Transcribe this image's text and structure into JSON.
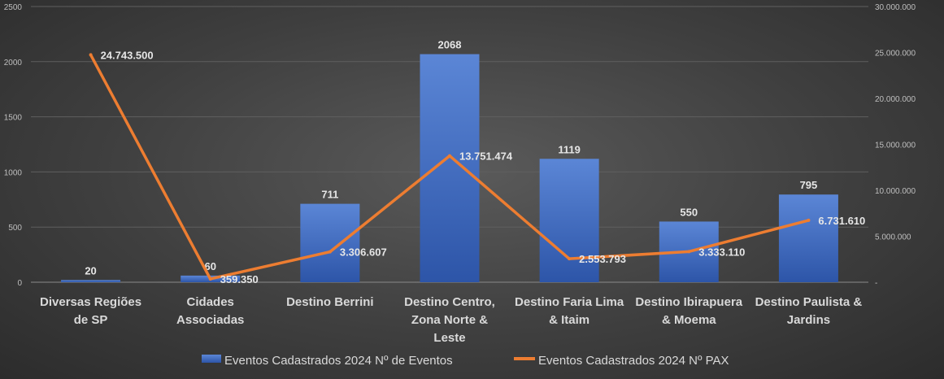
{
  "chart_data": {
    "type": "bar",
    "title": "",
    "xlabel": "",
    "ylabel": "",
    "categories": [
      [
        "Diversas Regiões",
        "de SP"
      ],
      [
        "Cidades",
        "Associadas"
      ],
      [
        "Destino Berrini"
      ],
      [
        "Destino Centro,",
        "Zona Norte &",
        "Leste"
      ],
      [
        "Destino Faria Lima",
        "& Itaim"
      ],
      [
        "Destino Ibirapuera",
        "& Moema"
      ],
      [
        "Destino Paulista &",
        "Jardins"
      ]
    ],
    "series": [
      {
        "name": "Eventos Cadastrados 2024 Nº de Eventos",
        "type": "bar",
        "axis": "left",
        "color": "#4472c4",
        "values": [
          20,
          60,
          711,
          2068,
          1119,
          550,
          795
        ],
        "labels": [
          "20",
          "60",
          "711",
          "2068",
          "1119",
          "550",
          "795"
        ]
      },
      {
        "name": "Eventos Cadastrados 2024 Nº PAX",
        "type": "line",
        "axis": "right",
        "color": "#ed7d31",
        "values": [
          24743500,
          359350,
          3306607,
          13751474,
          2553793,
          3333110,
          6731610
        ],
        "labels": [
          "24.743.500",
          "359.350",
          "3.306.607",
          "13.751.474",
          "2.553.793",
          "3.333.110",
          "6.731.610"
        ]
      }
    ],
    "y_left": {
      "ylim": [
        0,
        2500
      ],
      "ticks": [
        0,
        500,
        1000,
        1500,
        2000,
        2500
      ],
      "tick_labels": [
        "0",
        "500",
        "1000",
        "1500",
        "2000",
        "2500"
      ]
    },
    "y_right": {
      "ylim": [
        0,
        30000000
      ],
      "ticks": [
        0,
        5000000,
        10000000,
        15000000,
        20000000,
        25000000,
        30000000
      ],
      "tick_labels": [
        "-",
        "5.000.000",
        "10.000.000",
        "15.000.000",
        "20.000.000",
        "25.000.000",
        "30.000.000"
      ]
    },
    "grid": true,
    "legend": "bottom"
  }
}
